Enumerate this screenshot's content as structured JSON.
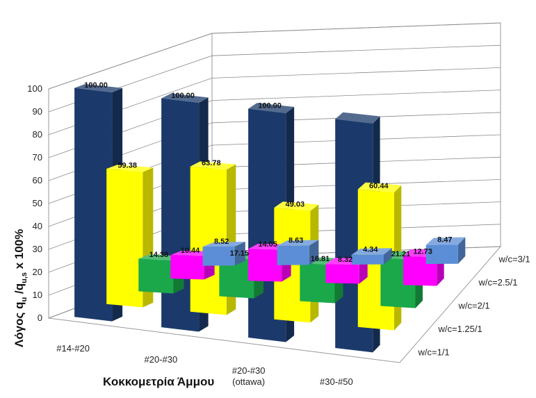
{
  "chart_data": {
    "type": "bar",
    "subtype": "3d-column",
    "categories": [
      "#14-#20",
      "#20-#30",
      "#20-#30 (ottawa)",
      "#30-#50"
    ],
    "category_lines": [
      [
        "#14-#20"
      ],
      [
        "#20-#30"
      ],
      [
        "#20-#30",
        "(ottawa)"
      ],
      [
        "#30-#50"
      ]
    ],
    "series": [
      {
        "name": "w/c=1/1",
        "values": [
          100.0,
          100.0,
          100.0,
          100.0
        ],
        "color": "#1b3a6b"
      },
      {
        "name": "w/c=1.25/1",
        "values": [
          59.38,
          63.78,
          49.03,
          60.44
        ],
        "color": "#ffff00"
      },
      {
        "name": "w/c=2/1",
        "values": [
          14.38,
          17.15,
          16.81,
          21.21
        ],
        "color": "#1aa84a"
      },
      {
        "name": "w/c=2.5/1",
        "values": [
          10.44,
          14.05,
          8.32,
          12.73
        ],
        "color": "#ff00ff"
      },
      {
        "name": "w/c=3/1",
        "values": [
          8.52,
          8.63,
          4.34,
          8.47
        ],
        "color": "#5b8ed6"
      }
    ],
    "data_labels": [
      [
        "100.00",
        "100.00",
        "100.00",
        ""
      ],
      [
        "59.38",
        "63.78",
        "49.03",
        "60.44"
      ],
      [
        "14.38",
        "17.15",
        "16.81",
        "21.21"
      ],
      [
        "10.44",
        "14.05",
        "8.32",
        "12.73"
      ],
      [
        "8.52",
        "8.63",
        "4.34",
        "8.47"
      ]
    ],
    "ylabel": "Λόγος  q",
    "ylabel_sub1": "u",
    "ylabel_mid": " /q",
    "ylabel_sub2": "u,s",
    "ylabel_tail": "  x 100%",
    "xlabel": "Κοκκομετρία Άμμου",
    "yticks": [
      0,
      10,
      20,
      30,
      40,
      50,
      60,
      70,
      80,
      90,
      100
    ],
    "ylim": [
      0,
      100
    ],
    "grid": true,
    "legend": "series-axis-right"
  }
}
